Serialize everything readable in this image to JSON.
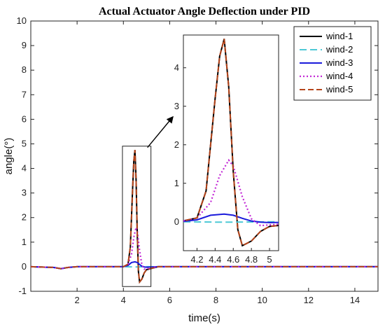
{
  "chart_data": {
    "type": "line",
    "title": "Actual Actuator Angle Deflection under PID",
    "xlabel": "time(s)",
    "ylabel": "angle(°)",
    "xlim": [
      0,
      15
    ],
    "ylim": [
      -1,
      10
    ],
    "xticks": [
      "2",
      "4",
      "6",
      "8",
      "10",
      "12",
      "14"
    ],
    "yticks": [
      "-1",
      "0",
      "1",
      "2",
      "3",
      "4",
      "5",
      "6",
      "7",
      "8",
      "9",
      "10"
    ],
    "grid": false,
    "legend_position": "top-right",
    "series": [
      {
        "name": "wind-1",
        "color": "#000000",
        "style": "solid",
        "x": [
          0,
          1.0,
          1.3,
          1.6,
          2.0,
          4.0,
          4.2,
          4.3,
          4.4,
          4.45,
          4.5,
          4.55,
          4.6,
          4.65,
          4.7,
          4.8,
          4.9,
          5.0,
          5.5,
          15
        ],
        "y": [
          0,
          -0.03,
          -0.08,
          -0.03,
          0,
          0,
          0.1,
          0.8,
          3.2,
          4.3,
          4.75,
          3.5,
          1.3,
          -0.2,
          -0.62,
          -0.5,
          -0.25,
          -0.12,
          0,
          0
        ]
      },
      {
        "name": "wind-2",
        "color": "#4ec9d6",
        "style": "dash",
        "x": [
          0,
          1.0,
          1.3,
          1.6,
          2.0,
          4.0,
          4.5,
          5.0,
          15
        ],
        "y": [
          0,
          -0.03,
          -0.08,
          -0.03,
          0,
          0,
          -0.01,
          0,
          0
        ]
      },
      {
        "name": "wind-3",
        "color": "#1a1adb",
        "style": "solid",
        "x": [
          0,
          1.0,
          1.3,
          1.6,
          2.0,
          4.0,
          4.2,
          4.35,
          4.5,
          4.6,
          4.7,
          4.8,
          4.9,
          5.0,
          5.5,
          15
        ],
        "y": [
          0,
          -0.03,
          -0.08,
          -0.03,
          0,
          0,
          0.05,
          0.17,
          0.2,
          0.17,
          0.09,
          0.02,
          -0.01,
          -0.02,
          0,
          0
        ]
      },
      {
        "name": "wind-4",
        "color": "#c229d6",
        "style": "dot",
        "x": [
          0,
          1.0,
          1.3,
          1.6,
          2.0,
          4.0,
          4.2,
          4.35,
          4.45,
          4.55,
          4.6,
          4.7,
          4.8,
          4.9,
          5.0,
          5.5,
          15
        ],
        "y": [
          0,
          -0.03,
          -0.08,
          -0.03,
          0,
          0,
          0.1,
          0.5,
          1.2,
          1.6,
          1.45,
          0.65,
          0.08,
          -0.1,
          -0.08,
          0,
          0
        ]
      },
      {
        "name": "wind-5",
        "color": "#b5451b",
        "style": "longdash",
        "x": [
          0,
          1.0,
          1.3,
          1.6,
          2.0,
          4.0,
          4.2,
          4.3,
          4.4,
          4.45,
          4.5,
          4.55,
          4.6,
          4.65,
          4.7,
          4.8,
          4.9,
          5.0,
          5.5,
          15
        ],
        "y": [
          0,
          -0.03,
          -0.08,
          -0.03,
          0,
          0,
          0.1,
          0.8,
          3.2,
          4.3,
          4.75,
          3.5,
          1.3,
          -0.2,
          -0.62,
          -0.5,
          -0.25,
          -0.12,
          0,
          0
        ]
      }
    ],
    "inset": {
      "xlim": [
        4.05,
        5.1
      ],
      "ylim": [
        -0.75,
        4.85
      ],
      "xticks": [
        "4.2",
        "4.4",
        "4.6",
        "4.8",
        "5"
      ],
      "yticks": [
        "0",
        "1",
        "2",
        "3",
        "4"
      ],
      "zoom_region_x": [
        4.05,
        5.1
      ],
      "zoom_region_y": [
        -0.75,
        4.85
      ]
    }
  }
}
